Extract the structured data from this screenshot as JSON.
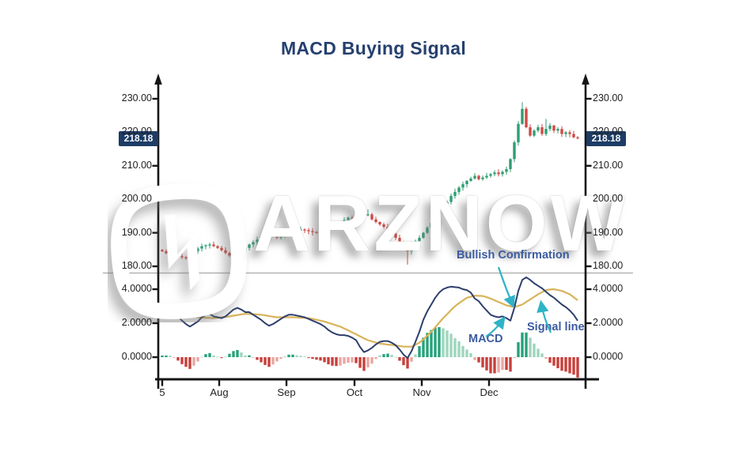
{
  "title": "MACD Buying Signal",
  "watermark": {
    "text": "ARZNOW"
  },
  "annotations": {
    "bullish": "Bullish Confirmation",
    "macd": "MACD",
    "signal": "Signal line"
  },
  "colors": {
    "title_text": "#25406f",
    "axis_line": "#151515",
    "divider": "#b3b3b3",
    "badge_bg": "#1d3c66",
    "badge_text": "#ffffff",
    "annotation_text": "#3b5ba0",
    "arrow": "#2fb3c7",
    "candle_up": "#2f9e73",
    "candle_down": "#cf4a44",
    "macd_line": "#2e3f6e",
    "signal_line": "#d8b35a",
    "hist_up_strong": "#27a17b",
    "hist_up_weak": "#9fd6bd",
    "hist_down_strong": "#c8403c",
    "hist_down_weak": "#e9a7a3"
  },
  "price_axis": {
    "ticks": [
      "230.00",
      "220.00",
      "210.00",
      "200.00",
      "190.00",
      "180.00"
    ],
    "tick_values": [
      230,
      220,
      210,
      200,
      190,
      180
    ],
    "last_price_label": "218.18",
    "last_price_value": 218.18
  },
  "macd_axis": {
    "ticks": [
      "4.0000",
      "2.0000",
      "0.0000"
    ],
    "tick_values": [
      4,
      2,
      0
    ]
  },
  "x_axis": {
    "labels": [
      "5",
      "Aug",
      "Sep",
      "Oct",
      "Nov",
      "Dec"
    ],
    "tick_days": [
      0,
      14.4,
      31.4,
      48.6,
      65.6,
      82.6
    ],
    "n_days": 106
  },
  "chart_data": [
    {
      "type": "candlestick",
      "pane": "price",
      "title": "price pane",
      "ylim": [
        177,
        233
      ],
      "yticks": [
        180,
        190,
        200,
        210,
        220,
        230
      ],
      "grid": false,
      "last_price": 218.18,
      "closes": [
        184.5,
        183.9,
        183.5,
        183.2,
        183.0,
        182.7,
        182.5,
        183.4,
        184.5,
        185.3,
        186.0,
        186.3,
        186.5,
        186.0,
        185.5,
        184.8,
        184.0,
        183.2,
        182.5,
        183.0,
        184.5,
        185.5,
        186.5,
        187.2,
        188.0,
        188.8,
        189.5,
        190.0,
        190.5,
        188.5,
        189.0,
        189.5,
        190.0,
        190.5,
        190.8,
        191.0,
        190.8,
        190.5,
        190.2,
        190.0,
        190.5,
        191.0,
        191.5,
        192.0,
        192.5,
        193.0,
        193.8,
        194.5,
        194.2,
        194.0,
        195.0,
        195.2,
        195.5,
        194.0,
        193.2,
        192.5,
        191.8,
        191.0,
        189.8,
        188.5,
        187.2,
        186.0,
        184.5,
        186.5,
        187.5,
        188.5,
        190.0,
        191.5,
        193.0,
        194.5,
        196.0,
        197.5,
        199.2,
        201.0,
        202.2,
        203.5,
        204.5,
        205.5,
        206.2,
        207.0,
        206.0,
        206.5,
        207.0,
        207.5,
        208.0,
        207.5,
        208.2,
        209.0,
        212.0,
        217.0,
        222.5,
        227.0,
        221.5,
        219.0,
        220.5,
        221.5,
        219.5,
        221.0,
        222.0,
        220.5,
        221.0,
        219.5,
        220.0,
        219.5,
        218.5,
        218.18
      ],
      "wick_overrides": {
        "19": {
          "low": 180.3
        },
        "52": {
          "high": 197.0
        },
        "62": {
          "low": 180.5
        },
        "91": {
          "high": 229.0
        },
        "97": {
          "high": 224.0
        }
      }
    },
    {
      "type": "line+bar",
      "pane": "macd",
      "ylim": [
        -1.6,
        5.2
      ],
      "yticks": [
        0,
        2,
        4
      ],
      "grid": false,
      "series": [
        {
          "name": "MACD",
          "values": [
            2.8,
            2.78,
            2.75,
            2.6,
            2.4,
            2.15,
            1.95,
            1.8,
            1.95,
            2.1,
            2.35,
            2.5,
            2.55,
            2.4,
            2.35,
            2.3,
            2.4,
            2.6,
            2.8,
            2.9,
            2.8,
            2.65,
            2.65,
            2.5,
            2.35,
            2.2,
            2.0,
            1.85,
            1.95,
            2.1,
            2.25,
            2.4,
            2.5,
            2.5,
            2.45,
            2.4,
            2.35,
            2.25,
            2.15,
            2.05,
            1.95,
            1.8,
            1.6,
            1.45,
            1.35,
            1.3,
            1.3,
            1.25,
            1.15,
            1.0,
            0.6,
            0.3,
            0.4,
            0.55,
            0.75,
            0.9,
            0.95,
            0.95,
            0.85,
            0.7,
            0.45,
            0.15,
            -0.05,
            0.35,
            0.9,
            1.5,
            2.2,
            2.7,
            3.1,
            3.5,
            3.8,
            4.0,
            4.1,
            4.15,
            4.12,
            4.1,
            4.0,
            3.95,
            3.8,
            3.45,
            3.3,
            3.0,
            2.75,
            2.5,
            2.4,
            2.35,
            2.4,
            2.3,
            2.15,
            2.9,
            3.9,
            4.55,
            4.7,
            4.55,
            4.35,
            4.2,
            4.05,
            3.85,
            3.65,
            3.5,
            3.3,
            3.1,
            2.95,
            2.75,
            2.5,
            2.15
          ]
        },
        {
          "name": "Signal line",
          "values": [
            2.7,
            2.68,
            2.66,
            2.63,
            2.6,
            2.56,
            2.52,
            2.49,
            2.45,
            2.35,
            2.33,
            2.32,
            2.31,
            2.3,
            2.32,
            2.35,
            2.37,
            2.4,
            2.44,
            2.48,
            2.52,
            2.55,
            2.54,
            2.53,
            2.51,
            2.5,
            2.46,
            2.42,
            2.38,
            2.35,
            2.35,
            2.35,
            2.35,
            2.35,
            2.34,
            2.32,
            2.31,
            2.3,
            2.25,
            2.2,
            2.15,
            2.1,
            2.02,
            1.95,
            1.87,
            1.8,
            1.69,
            1.58,
            1.46,
            1.35,
            1.23,
            1.11,
            1.0,
            0.93,
            0.86,
            0.8,
            0.77,
            0.74,
            0.72,
            0.69,
            0.66,
            0.62,
            0.62,
            0.62,
            0.73,
            0.85,
            1.05,
            1.27,
            1.5,
            1.76,
            2.03,
            2.3,
            2.53,
            2.77,
            3.0,
            3.17,
            3.34,
            3.5,
            3.56,
            3.62,
            3.61,
            3.6,
            3.53,
            3.45,
            3.35,
            3.25,
            3.15,
            3.05,
            3.0,
            2.95,
            3.02,
            3.1,
            3.25,
            3.4,
            3.55,
            3.7,
            3.83,
            3.95,
            3.98,
            4.0,
            3.95,
            3.9,
            3.8,
            3.7,
            3.53,
            3.35
          ]
        }
      ],
      "histogram": {
        "definition": "macd_minus_signal"
      }
    }
  ]
}
